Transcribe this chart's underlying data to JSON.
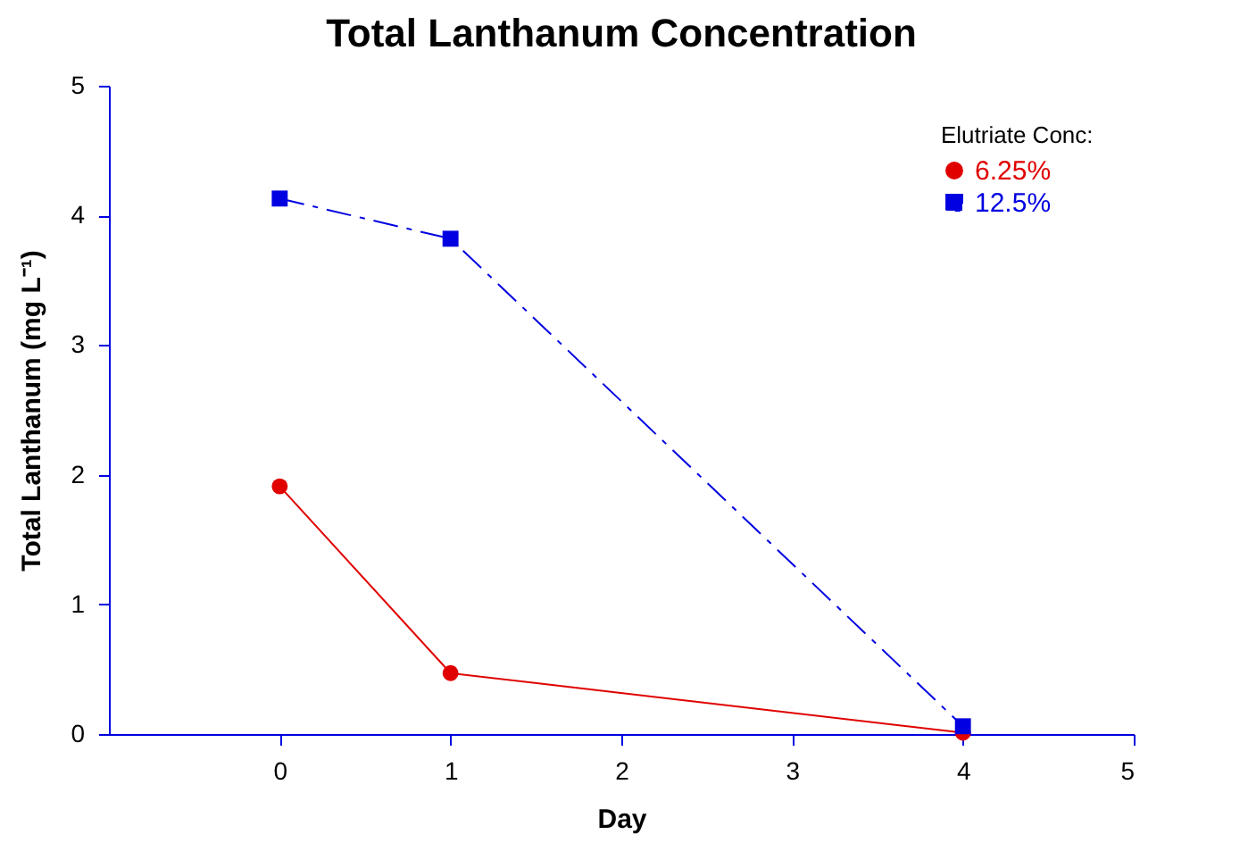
{
  "chart_data": {
    "type": "line",
    "title": "Total Lanthanum Concentration",
    "xlabel": "Day",
    "ylabel": "Total Lanthanum (mg L⁻¹)",
    "legend_title": "Elutriate Conc:",
    "x": [
      0,
      1,
      4
    ],
    "series": [
      {
        "name": "6.25%",
        "color": "#e00000",
        "values": [
          1.91,
          0.47,
          0.01
        ],
        "line_style": "solid",
        "marker": "circle"
      },
      {
        "name": "12.5%",
        "color": "#0000e0",
        "values": [
          4.13,
          3.82,
          0.06
        ],
        "line_style": "dashed",
        "marker": "square"
      }
    ],
    "xlim": [
      -1,
      5
    ],
    "xticks": [
      0,
      1,
      2,
      3,
      4,
      5
    ],
    "ylim": [
      0,
      5
    ],
    "yticks": [
      0,
      1,
      2,
      3,
      4,
      5
    ],
    "grid": false,
    "legend": "top right"
  }
}
